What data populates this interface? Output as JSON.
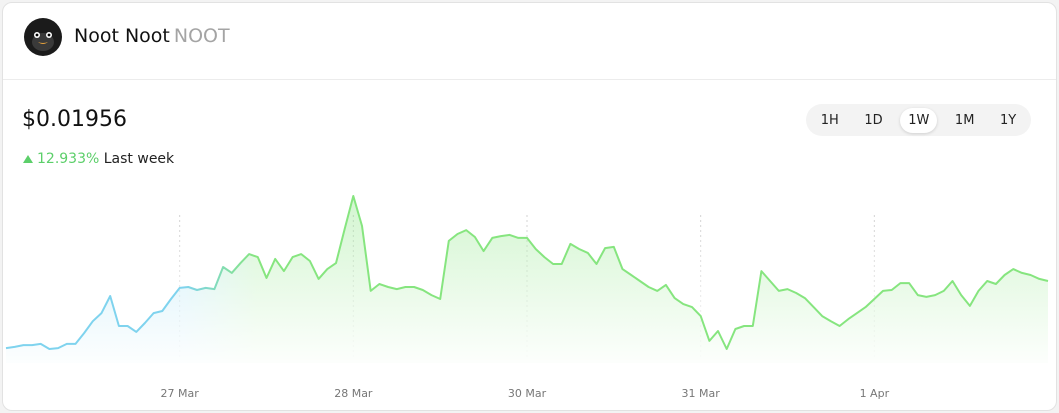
{
  "header": {
    "name": "Noot Noot",
    "symbol": "NOOT"
  },
  "price": "$0.01956",
  "change": {
    "value": "12.933%",
    "period": "Last week"
  },
  "timeframes": {
    "options": [
      "1H",
      "1D",
      "1W",
      "1M",
      "1Y"
    ],
    "selected": 2
  },
  "chart_data": {
    "type": "area",
    "values": [
      0.01732,
      0.01736,
      0.01742,
      0.01742,
      0.01746,
      0.01729,
      0.01732,
      0.01746,
      0.01746,
      0.01782,
      0.01822,
      0.01849,
      0.01906,
      0.01806,
      0.01806,
      0.01786,
      0.01816,
      0.01849,
      0.01856,
      0.01896,
      0.01933,
      0.01936,
      0.01926,
      0.01933,
      0.01929,
      0.02003,
      0.01983,
      0.02016,
      0.02046,
      0.02036,
      0.01966,
      0.0203,
      0.01989,
      0.02036,
      0.02046,
      0.02023,
      0.01963,
      0.01996,
      0.02016,
      0.0213,
      0.0224,
      0.0214,
      0.01923,
      0.01946,
      0.01936,
      0.01929,
      0.01936,
      0.01936,
      0.01926,
      0.01909,
      0.01896,
      0.0209,
      0.02113,
      0.02126,
      0.02103,
      0.02056,
      0.021,
      0.02106,
      0.0211,
      0.021,
      0.021,
      0.02063,
      0.02036,
      0.02013,
      0.02013,
      0.0208,
      0.02063,
      0.0205,
      0.02013,
      0.02066,
      0.0207,
      0.01996,
      0.01976,
      0.01956,
      0.01936,
      0.01923,
      0.01943,
      0.01899,
      0.01879,
      0.01869,
      0.01839,
      0.01756,
      0.01789,
      0.01729,
      0.01796,
      0.01806,
      0.01806,
      0.01989,
      0.01956,
      0.01923,
      0.01929,
      0.01916,
      0.01899,
      0.01869,
      0.01839,
      0.01822,
      0.01806,
      0.01829,
      0.01849,
      0.01869,
      0.01896,
      0.01923,
      0.01926,
      0.01949,
      0.01949,
      0.01909,
      0.01903,
      0.01909,
      0.01923,
      0.01956,
      0.01909,
      0.01873,
      0.01923,
      0.01956,
      0.01946,
      0.01976,
      0.01996,
      0.01983,
      0.01976,
      0.01963,
      0.01956
    ],
    "colors": [
      "#7fd3ee",
      "#86e57f"
    ],
    "xlim": [
      0,
      120
    ],
    "xticks": [
      {
        "value": 20,
        "label": "27 Mar"
      },
      {
        "value": 40,
        "label": "28 Mar"
      },
      {
        "value": 60,
        "label": "30 Mar"
      },
      {
        "value": 80,
        "label": "31 Mar"
      },
      {
        "value": 100,
        "label": "1 Apr"
      }
    ],
    "ylim": [
      0.01689,
      0.0229
    ],
    "grid": true
  }
}
